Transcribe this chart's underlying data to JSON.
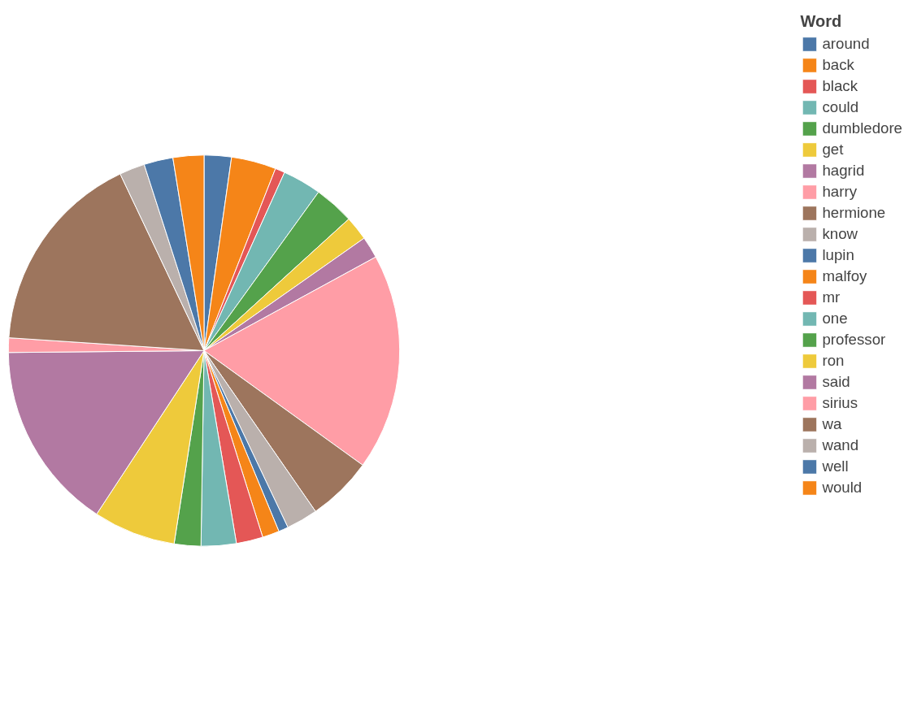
{
  "chart_data": {
    "type": "pie",
    "legend_title": "Word",
    "legend": "right",
    "categories": [
      "around",
      "back",
      "black",
      "could",
      "dumbledore",
      "get",
      "hagrid",
      "harry",
      "hermione",
      "know",
      "lupin",
      "malfoy",
      "mr",
      "one",
      "professor",
      "ron",
      "said",
      "sirius",
      "wa",
      "wand",
      "well",
      "would"
    ],
    "values": [
      2.25,
      3.7,
      0.8,
      3.2,
      3.3,
      2.0,
      1.8,
      17.9,
      5.4,
      2.6,
      0.8,
      1.4,
      2.2,
      2.9,
      2.2,
      6.8,
      15.6,
      1.2,
      16.9,
      2.1,
      2.4,
      2.55
    ],
    "colors": [
      "#4c78a8",
      "#f58518",
      "#e45756",
      "#72b7b2",
      "#54a24b",
      "#eeca3b",
      "#b279a2",
      "#ff9da6",
      "#9d755d",
      "#bab0ac",
      "#4c78a8",
      "#f58518",
      "#e45756",
      "#72b7b2",
      "#54a24b",
      "#eeca3b",
      "#b279a2",
      "#ff9da6",
      "#9d755d",
      "#bab0ac",
      "#4c78a8",
      "#f58518"
    ]
  }
}
